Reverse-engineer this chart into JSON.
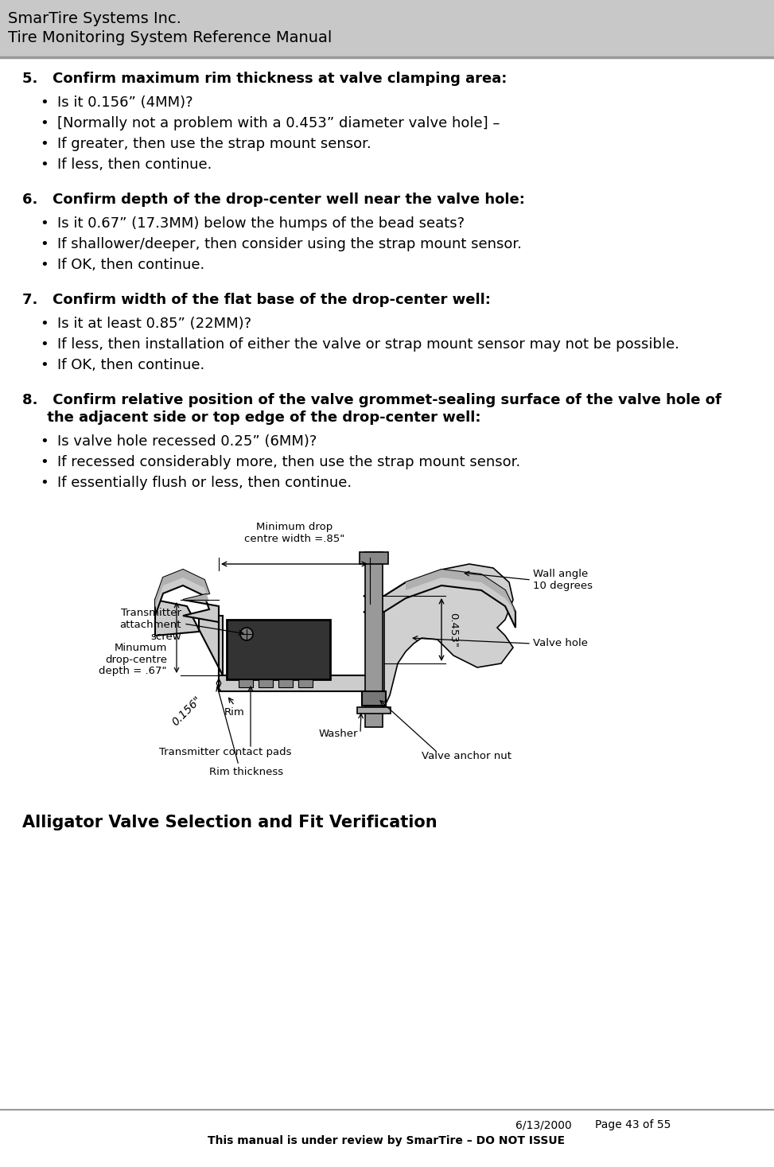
{
  "header_line1": "SmarTire Systems Inc.",
  "header_line2": "Tire Monitoring System Reference Manual",
  "footer_date": "6/13/2000",
  "footer_page": "Page 43 of 55",
  "footer_notice": "This manual is under review by SmarTire – DO NOT ISSUE",
  "section5_title": "5.   Confirm maximum rim thickness at valve clamping area:",
  "section5_bullets": [
    "Is it 0.156” (4MM)?",
    "[Normally not a problem with a 0.453” diameter valve hole] –",
    "If greater, then use the strap mount sensor.",
    "If less, then continue."
  ],
  "section6_title": "6.   Confirm depth of the drop-center well near the valve hole:",
  "section6_bullets": [
    "Is it 0.67” (17.3MM) below the humps of the bead seats?",
    "If shallower/deeper, then consider using the strap mount sensor.",
    "If OK, then continue."
  ],
  "section7_title": "7.   Confirm width of the flat base of the drop-center well:",
  "section7_bullets": [
    "Is it at least 0.85” (22MM)?",
    "If less, then installation of either the valve or strap mount sensor may not be possible.",
    "If OK, then continue."
  ],
  "section8_title_line1": "8.   Confirm relative position of the valve grommet-sealing surface of the valve hole of",
  "section8_title_line2": "     the adjacent side or top edge of the drop-center well:",
  "section8_bullets": [
    "Is valve hole recessed 0.25” (6MM)?",
    "If recessed considerably more, then use the strap mount sensor.",
    "If essentially flush or less, then continue."
  ],
  "caption": "Alligator Valve Selection and Fit Verification",
  "bg_color": "#ffffff",
  "header_bg": "#c8c8c8",
  "text_color": "#000000",
  "title_fs": 14,
  "section_title_fs": 13,
  "bullet_fs": 13,
  "ann_fs": 9.5,
  "caption_fs": 15,
  "footer_fs": 10
}
